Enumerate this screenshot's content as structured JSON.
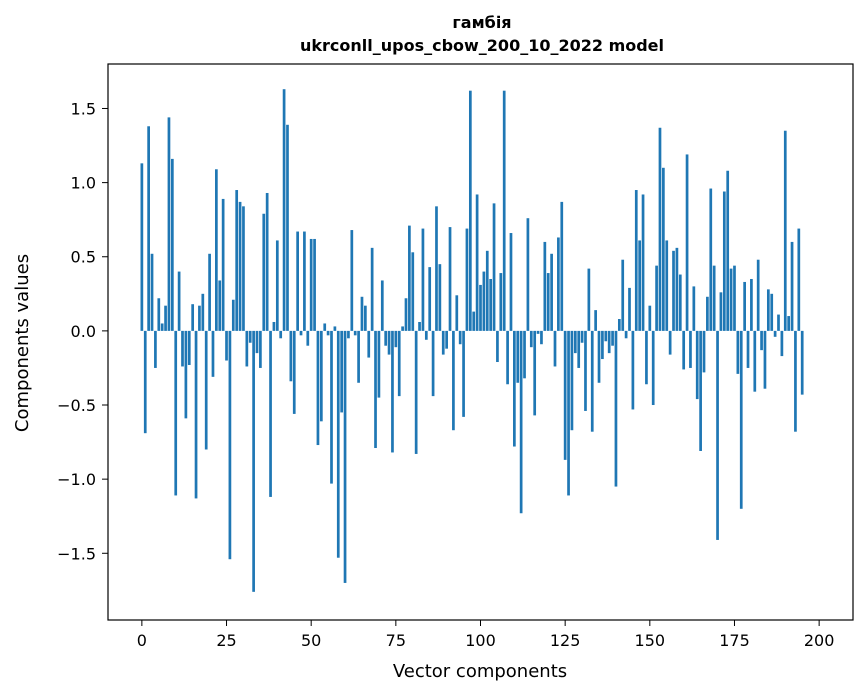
{
  "chart_data": {
    "type": "bar",
    "title": "гамбія",
    "subtitle": "ukrconll_upos_cbow_200_10_2022 model",
    "xlabel": "Vector components",
    "ylabel": "Components values",
    "xlim": [
      -10,
      210
    ],
    "ylim": [
      -1.95,
      1.8
    ],
    "xticks": [
      0,
      25,
      50,
      75,
      100,
      125,
      150,
      175,
      200
    ],
    "yticks": [
      -1.5,
      -1.0,
      -0.5,
      0.0,
      0.5,
      1.0,
      1.5
    ],
    "ytick_labels": [
      "−1.5",
      "−1.0",
      "−0.5",
      "0.0",
      "0.5",
      "1.0",
      "1.5"
    ],
    "grid": false,
    "bar_color": "#1f77b4",
    "values": [
      1.13,
      -0.69,
      1.38,
      0.52,
      -0.25,
      0.22,
      0.05,
      0.17,
      1.44,
      1.16,
      -1.11,
      0.4,
      -0.24,
      -0.59,
      -0.23,
      0.18,
      -1.13,
      0.17,
      0.25,
      -0.8,
      0.52,
      -0.31,
      1.09,
      0.34,
      0.89,
      -0.2,
      -1.54,
      0.21,
      0.95,
      0.87,
      0.84,
      -0.24,
      -0.08,
      -1.76,
      -0.15,
      -0.25,
      0.79,
      0.93,
      -1.12,
      0.06,
      0.61,
      -0.05,
      1.63,
      1.39,
      -0.34,
      -0.56,
      0.67,
      -0.03,
      0.67,
      -0.1,
      0.62,
      0.62,
      -0.77,
      -0.61,
      0.05,
      -0.03,
      -1.03,
      0.03,
      -1.53,
      -0.55,
      -1.7,
      -0.05,
      0.68,
      -0.03,
      -0.35,
      0.23,
      0.17,
      -0.18,
      0.56,
      -0.79,
      -0.45,
      0.34,
      -0.1,
      -0.16,
      -0.82,
      -0.11,
      -0.44,
      0.03,
      0.22,
      0.71,
      0.53,
      -0.83,
      0.06,
      0.69,
      -0.06,
      0.43,
      -0.44,
      0.84,
      0.45,
      -0.16,
      -0.12,
      0.7,
      -0.67,
      0.24,
      -0.09,
      -0.58,
      0.69,
      1.62,
      0.13,
      0.92,
      0.31,
      0.4,
      0.54,
      0.35,
      0.86,
      -0.21,
      0.39,
      1.62,
      -0.36,
      0.66,
      -0.78,
      -0.35,
      -1.23,
      -0.32,
      0.76,
      -0.11,
      -0.57,
      -0.02,
      -0.09,
      0.6,
      0.39,
      0.52,
      -0.24,
      0.63,
      0.87,
      -0.87,
      -1.11,
      -0.67,
      -0.15,
      -0.25,
      -0.08,
      -0.54,
      0.42,
      -0.68,
      0.14,
      -0.35,
      -0.19,
      -0.07,
      -0.15,
      -0.1,
      -1.05,
      0.08,
      0.48,
      -0.05,
      0.29,
      -0.53,
      0.95,
      0.61,
      0.92,
      -0.36,
      0.17,
      -0.5,
      0.44,
      1.37,
      1.1,
      0.61,
      -0.16,
      0.54,
      0.56,
      0.38,
      -0.26,
      1.19,
      -0.25,
      0.3,
      -0.46,
      -0.81,
      -0.28,
      0.23,
      0.96,
      0.44,
      -1.41,
      0.26,
      0.94,
      1.08,
      0.42,
      0.44,
      -0.29,
      -1.2,
      0.33,
      -0.25,
      0.35,
      -0.41,
      0.48,
      -0.13,
      -0.39,
      0.28,
      0.25,
      -0.04,
      0.11,
      -0.17,
      1.35,
      0.1,
      0.6,
      -0.68,
      0.69,
      -0.43
    ]
  }
}
